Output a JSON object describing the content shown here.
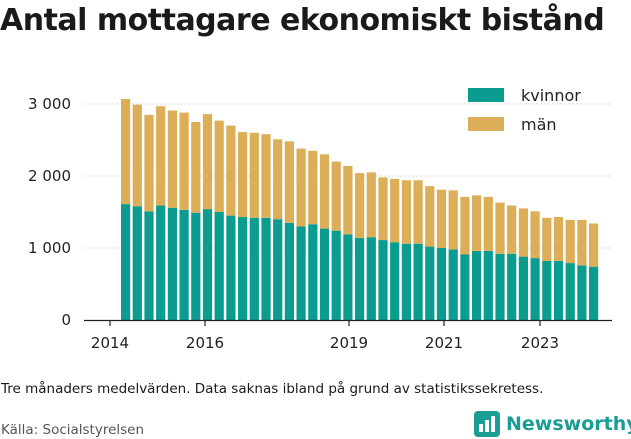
{
  "title": "Antal mottagare ekonomiskt bistånd",
  "note": "Tre månaders medelvärden. Data saknas ibland på grund av statistikssekretess.",
  "source": "Källa: Socialstyrelsen",
  "brand": {
    "name": "Newsworthy",
    "color": "#1a9e93",
    "icon": "bar-chart-logo-icon"
  },
  "chart_data": {
    "type": "bar",
    "stacked": true,
    "x_ticks": [
      "2014",
      "2016",
      "2019",
      "2021",
      "2023"
    ],
    "y_ticks": [
      "0",
      "1 000",
      "2 000",
      "3 000"
    ],
    "ylim": [
      0,
      3150
    ],
    "grid": "horizontal",
    "legend": "top-right",
    "series": [
      {
        "name": "kvinnor",
        "color": "#0a9c8e",
        "values": [
          1610,
          1580,
          1510,
          1590,
          1560,
          1530,
          1490,
          1540,
          1500,
          1450,
          1430,
          1420,
          1420,
          1400,
          1350,
          1300,
          1330,
          1270,
          1240,
          1190,
          1140,
          1150,
          1110,
          1080,
          1060,
          1060,
          1020,
          1000,
          980,
          910,
          960,
          960,
          920,
          920,
          880,
          860,
          820,
          820,
          790,
          760,
          740
        ]
      },
      {
        "name": "män",
        "color": "#dcae57",
        "values": [
          1460,
          1410,
          1340,
          1380,
          1350,
          1350,
          1260,
          1320,
          1270,
          1250,
          1180,
          1180,
          1160,
          1110,
          1130,
          1080,
          1020,
          1030,
          960,
          950,
          900,
          900,
          870,
          880,
          880,
          880,
          840,
          810,
          820,
          800,
          770,
          750,
          710,
          670,
          670,
          650,
          600,
          610,
          600,
          630,
          600
        ]
      }
    ]
  }
}
